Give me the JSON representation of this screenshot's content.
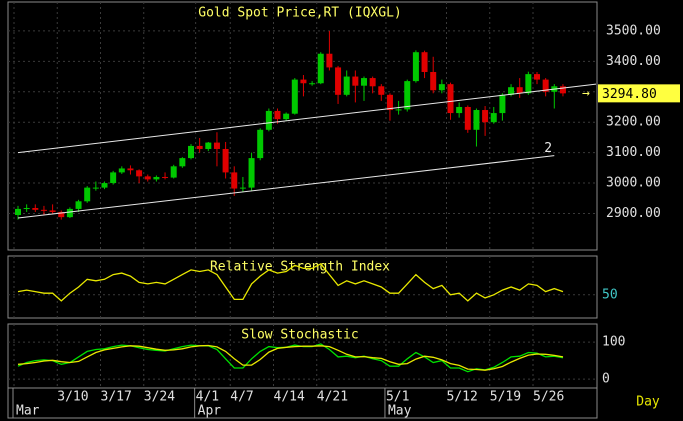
{
  "chart_data": [
    {
      "type": "candlestick",
      "title": "Gold Spot Price,RT (IQXGL)",
      "up_color": "#00c800",
      "down_color": "#e00000",
      "grid": true,
      "ylim": [
        2780,
        3595
      ],
      "yticks": [
        {
          "value": 2900,
          "label": "2900.00"
        },
        {
          "value": 3000,
          "label": "3000.00"
        },
        {
          "value": 3100,
          "label": "3100.00"
        },
        {
          "value": 3200,
          "label": "3200.00"
        },
        {
          "value": 3300,
          "label": "3300.00"
        },
        {
          "value": 3400,
          "label": "3400.00"
        },
        {
          "value": 3500,
          "label": "3500.00"
        }
      ],
      "open": [
        2895,
        2915,
        2918,
        2912,
        2910,
        2905,
        2888,
        2915,
        2940,
        2985,
        2985,
        3000,
        3035,
        3048,
        3042,
        3022,
        3012,
        3020,
        3018,
        3055,
        3082,
        3122,
        3112,
        3133,
        3112,
        3035,
        2982,
        2985,
        3082,
        3175,
        3237,
        3210,
        3228,
        3340,
        3328,
        3328,
        3425,
        3380,
        3290,
        3350,
        3320,
        3345,
        3318,
        3290,
        3240,
        3242,
        3335,
        3430,
        3365,
        3305,
        3325,
        3230,
        3250,
        3175,
        3240,
        3200,
        3230,
        3290,
        3315,
        3295,
        3358,
        3340,
        3300,
        3318
      ],
      "high": [
        2925,
        2930,
        2930,
        2925,
        2930,
        2910,
        2920,
        2945,
        2990,
        3005,
        3005,
        3040,
        3055,
        3058,
        3045,
        3028,
        3025,
        3035,
        3060,
        3085,
        3128,
        3148,
        3135,
        3167,
        3135,
        3055,
        3020,
        3100,
        3180,
        3245,
        3245,
        3232,
        3345,
        3355,
        3335,
        3430,
        3500,
        3385,
        3370,
        3370,
        3350,
        3350,
        3325,
        3295,
        3270,
        3340,
        3436,
        3435,
        3415,
        3340,
        3330,
        3265,
        3255,
        3245,
        3253,
        3250,
        3295,
        3325,
        3345,
        3366,
        3365,
        3345,
        3325,
        3325
      ],
      "low": [
        2880,
        2905,
        2905,
        2895,
        2900,
        2880,
        2885,
        2905,
        2935,
        2975,
        2980,
        2995,
        3030,
        3028,
        3000,
        3005,
        3005,
        3012,
        3015,
        3050,
        3078,
        3100,
        3105,
        3055,
        3015,
        2958,
        2970,
        2975,
        3075,
        3170,
        3195,
        3205,
        3225,
        3285,
        3320,
        3325,
        3370,
        3260,
        3285,
        3265,
        3270,
        3295,
        3270,
        3205,
        3225,
        3235,
        3330,
        3345,
        3295,
        3295,
        3208,
        3215,
        3165,
        3120,
        3155,
        3195,
        3205,
        3285,
        3280,
        3290,
        3325,
        3285,
        3245,
        3285
      ],
      "close": [
        2915,
        2918,
        2912,
        2910,
        2905,
        2888,
        2915,
        2940,
        2985,
        2985,
        3000,
        3035,
        3048,
        3042,
        3022,
        3012,
        3020,
        3018,
        3055,
        3082,
        3122,
        3112,
        3133,
        3112,
        3035,
        2982,
        2985,
        3082,
        3175,
        3237,
        3210,
        3228,
        3340,
        3328,
        3328,
        3425,
        3380,
        3290,
        3350,
        3320,
        3345,
        3318,
        3290,
        3240,
        3242,
        3335,
        3430,
        3365,
        3305,
        3325,
        3230,
        3250,
        3175,
        3240,
        3200,
        3230,
        3290,
        3315,
        3295,
        3358,
        3340,
        3300,
        3318,
        3294.8
      ],
      "trendlines": [
        {
          "points": [
            [
              0,
              3100
            ],
            [
              67,
              3325
            ]
          ]
        },
        {
          "points": [
            [
              0,
              2885
            ],
            [
              62,
              3090
            ]
          ],
          "label": "2"
        }
      ],
      "last_price": {
        "value": 3294.8,
        "label": "3294.80"
      }
    },
    {
      "type": "line",
      "title": "Relative Strength Index",
      "grid": true,
      "ylim": [
        35,
        75
      ],
      "yticks": [
        50
      ],
      "series": [
        {
          "color": "#e8e800",
          "values": [
            52,
            53,
            52,
            51,
            51,
            46,
            51,
            55,
            60,
            59,
            60,
            63,
            64,
            62,
            58,
            57,
            58,
            57,
            60,
            63,
            66,
            65,
            66,
            63,
            55,
            47,
            47,
            57,
            62,
            66,
            64,
            65,
            69,
            67,
            67,
            70,
            63,
            56,
            59,
            57,
            59,
            57,
            55,
            51,
            51,
            57,
            63,
            58,
            54,
            56,
            50,
            51,
            46,
            51,
            48,
            50,
            53,
            55,
            53,
            57,
            56,
            52,
            54,
            52
          ]
        }
      ]
    },
    {
      "type": "line",
      "title": "Slow Stochastic",
      "grid": true,
      "ylim": [
        -24,
        149
      ],
      "yticks": [
        0,
        100
      ],
      "series": [
        {
          "color": "#00e000",
          "values": [
            35,
            45,
            50,
            52,
            50,
            40,
            45,
            60,
            75,
            80,
            82,
            88,
            92,
            90,
            85,
            80,
            78,
            76,
            82,
            88,
            92,
            90,
            90,
            80,
            55,
            30,
            30,
            55,
            75,
            88,
            85,
            86,
            92,
            88,
            88,
            95,
            80,
            60,
            62,
            58,
            62,
            55,
            50,
            35,
            35,
            55,
            72,
            60,
            45,
            50,
            30,
            30,
            20,
            28,
            25,
            32,
            45,
            60,
            62,
            72,
            70,
            60,
            62,
            58
          ]
        },
        {
          "color": "#e8e800",
          "values": [
            40,
            42,
            45,
            49,
            51,
            47,
            45,
            48,
            60,
            72,
            79,
            83,
            87,
            90,
            89,
            85,
            81,
            78,
            79,
            82,
            87,
            90,
            91,
            87,
            75,
            55,
            38,
            38,
            53,
            73,
            83,
            86,
            88,
            89,
            89,
            90,
            88,
            78,
            67,
            60,
            61,
            58,
            56,
            47,
            40,
            42,
            54,
            62,
            59,
            52,
            42,
            37,
            27,
            26,
            24,
            28,
            34,
            46,
            56,
            65,
            68,
            67,
            64,
            60
          ]
        }
      ],
      "categories": [
        null,
        null,
        null,
        null,
        null,
        "3/10",
        null,
        null,
        null,
        null,
        "3/17",
        null,
        null,
        null,
        null,
        "3/24",
        null,
        null,
        null,
        null,
        null,
        "4/1",
        null,
        null,
        null,
        "4/7",
        null,
        null,
        null,
        null,
        "4/14",
        null,
        null,
        null,
        null,
        "4/21",
        null,
        null,
        null,
        null,
        null,
        null,
        null,
        "5/1",
        null,
        null,
        null,
        null,
        null,
        null,
        "5/12",
        null,
        null,
        null,
        null,
        "5/19",
        null,
        null,
        null,
        null,
        "5/26",
        null,
        null,
        null
      ],
      "months": [
        "Mar",
        null,
        null,
        null,
        null,
        null,
        null,
        null,
        null,
        null,
        null,
        null,
        null,
        null,
        null,
        null,
        null,
        null,
        null,
        null,
        null,
        "Apr",
        null,
        null,
        null,
        null,
        null,
        null,
        null,
        null,
        null,
        null,
        null,
        null,
        null,
        null,
        null,
        null,
        null,
        null,
        null,
        null,
        null,
        "May",
        null,
        null,
        null,
        null,
        null,
        null,
        null,
        null,
        null,
        null,
        null,
        null,
        null,
        null,
        null,
        null,
        null,
        null,
        null,
        null
      ],
      "period": "Day"
    }
  ]
}
